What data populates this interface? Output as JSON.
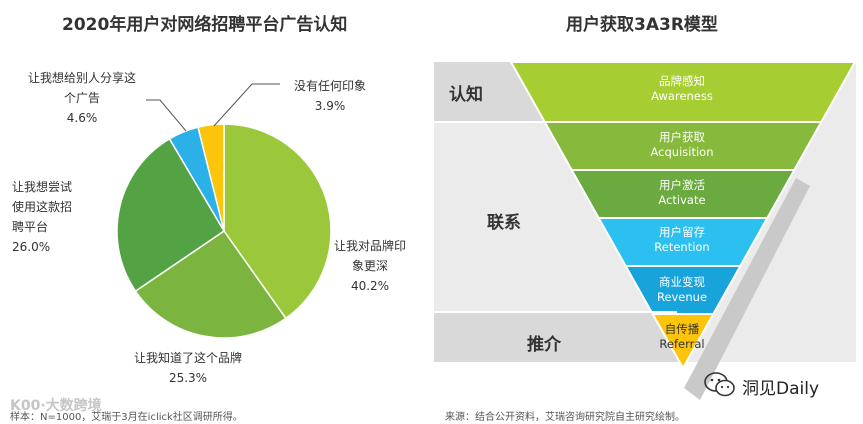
{
  "left_chart": {
    "title": "2020年用户对网络招聘平台广告认知",
    "footnote": "样本：N=1000，艾瑞于3月在iclick社区调研所得。",
    "watermark": "K00·大数跨境",
    "slices": [
      {
        "label_lines": [
          "让我对品牌印",
          "象更深"
        ],
        "value": 40.2,
        "value_text": "40.2%",
        "color": "#9ac83a"
      },
      {
        "label_lines": [
          "让我知道了这个品牌"
        ],
        "value": 25.3,
        "value_text": "25.3%",
        "color": "#7cb440"
      },
      {
        "label_lines": [
          "让我想尝试",
          "使用这款招",
          "聘平台"
        ],
        "value": 26.0,
        "value_text": "26.0%",
        "color": "#53a244"
      },
      {
        "label_lines": [
          "让我想给别人分享这",
          "个广告"
        ],
        "value": 4.6,
        "value_text": "4.6%",
        "color": "#2bb1e8"
      },
      {
        "label_lines": [
          "没有任何印象"
        ],
        "value": 3.9,
        "value_text": "3.9%",
        "color": "#fcc40a"
      }
    ]
  },
  "chart_data": {
    "type": "pie",
    "title": "2020年用户对网络招聘平台广告认知",
    "categories": [
      "让我对品牌印象更深",
      "让我知道了这个品牌",
      "让我想尝试使用这款招聘平台",
      "让我想给别人分享这个广告",
      "没有任何印象"
    ],
    "values": [
      40.2,
      25.3,
      26.0,
      4.6,
      3.9
    ],
    "unit": "%"
  },
  "right_chart": {
    "title": "用户获取3A3R模型",
    "stages": [
      "认知",
      "联系",
      "推介"
    ],
    "levels": [
      {
        "cn": "品牌感知",
        "en": "Awareness",
        "color": "#a6cd32"
      },
      {
        "cn": "用户获取",
        "en": "Acquisition",
        "color": "#86b93c"
      },
      {
        "cn": "用户激活",
        "en": "Activate",
        "color": "#6aaa3e"
      },
      {
        "cn": "用户留存",
        "en": "Retention",
        "color": "#2bc0ef"
      },
      {
        "cn": "商业变现",
        "en": "Revenue",
        "color": "#18a3da"
      },
      {
        "cn": "自传播",
        "en": "Referral",
        "color": "#fcc40a"
      }
    ],
    "footnote": "来源：结合公开资料，艾瑞咨询研究院自主研究绘制。"
  },
  "brand": {
    "name": "洞见Daily"
  }
}
